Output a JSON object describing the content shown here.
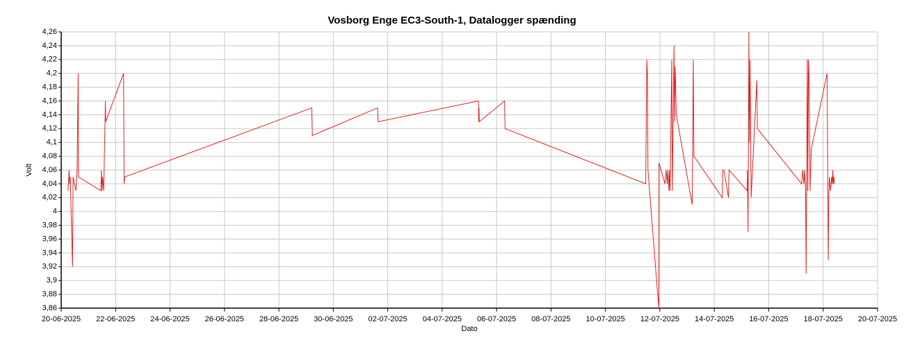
{
  "chart_data": {
    "type": "line",
    "title": "Vosborg Enge EC3-South-1, Datalogger spænding",
    "x_label": "Dato",
    "y_label": "Volt",
    "color": "#e02020",
    "grid": true,
    "x": [
      "2025-06-20T06:00",
      "2025-06-20T07:00",
      "2025-06-20T07:30",
      "2025-06-20T08:00",
      "2025-06-20T10:00",
      "2025-06-20T10:30",
      "2025-06-20T13:00",
      "2025-06-20T14:00",
      "2025-06-20T15:00",
      "2025-06-20T15:15",
      "2025-06-21T11:00",
      "2025-06-21T11:30",
      "2025-06-21T12:00",
      "2025-06-21T12:30",
      "2025-06-21T13:30",
      "2025-06-21T15:00",
      "2025-06-21T15:15",
      "2025-06-22T07:00",
      "2025-06-22T07:30",
      "2025-06-22T08:00",
      "2025-06-29T05:00",
      "2025-06-29T05:30",
      "2025-07-01T15:00",
      "2025-07-01T15:30",
      "2025-07-05T08:00",
      "2025-07-05T08:15",
      "2025-07-05T08:30",
      "2025-07-05T08:45",
      "2025-07-06T07:00",
      "2025-07-06T07:30",
      "2025-07-11T11:30",
      "2025-07-11T12:30",
      "2025-07-11T13:00",
      "2025-07-11T13:30",
      "2025-07-11T23:00",
      "2025-07-11T23:15",
      "2025-07-12T04:30",
      "2025-07-12T05:30",
      "2025-07-12T06:30",
      "2025-07-12T07:00",
      "2025-07-12T08:00",
      "2025-07-12T08:30",
      "2025-07-12T09:00",
      "2025-07-12T10:30",
      "2025-07-12T11:00",
      "2025-07-12T12:30",
      "2025-07-12T13:00",
      "2025-07-12T13:30",
      "2025-07-12T14:30",
      "2025-07-13T04:30",
      "2025-07-13T05:30",
      "2025-07-13T06:00",
      "2025-07-14T07:00",
      "2025-07-14T07:30",
      "2025-07-14T08:30",
      "2025-07-14T12:30",
      "2025-07-14T13:00",
      "2025-07-15T05:00",
      "2025-07-15T05:15",
      "2025-07-15T05:30",
      "2025-07-15T05:45",
      "2025-07-15T06:30",
      "2025-07-15T07:00",
      "2025-07-15T07:30",
      "2025-07-15T08:30",
      "2025-07-15T13:30",
      "2025-07-15T14:00",
      "2025-07-17T05:00",
      "2025-07-17T06:00",
      "2025-07-17T07:00",
      "2025-07-17T07:45",
      "2025-07-17T08:30",
      "2025-07-17T09:00",
      "2025-07-17T09:30",
      "2025-07-17T10:00",
      "2025-07-17T10:30",
      "2025-07-17T11:00",
      "2025-07-17T11:30",
      "2025-07-17T12:00",
      "2025-07-17T12:30",
      "2025-07-17T13:30",
      "2025-07-18T03:30",
      "2025-07-18T04:30",
      "2025-07-18T05:00",
      "2025-07-18T05:30",
      "2025-07-18T06:30",
      "2025-07-18T07:30",
      "2025-07-18T08:00",
      "2025-07-18T08:30",
      "2025-07-18T09:00",
      "2025-07-18T09:30",
      "2025-07-18T10:00"
    ],
    "values": [
      4.03,
      4.06,
      4.04,
      4.05,
      3.92,
      4.05,
      4.03,
      4.06,
      4.2,
      4.05,
      4.03,
      4.06,
      4.03,
      4.05,
      4.03,
      4.16,
      4.13,
      4.2,
      4.04,
      4.05,
      4.15,
      4.11,
      4.15,
      4.13,
      4.16,
      4.13,
      4.15,
      4.13,
      4.16,
      4.12,
      4.04,
      4.22,
      4.2,
      4.06,
      3.86,
      4.07,
      4.04,
      4.06,
      4.04,
      4.06,
      4.03,
      4.06,
      4.03,
      4.22,
      4.03,
      4.24,
      4.13,
      4.21,
      4.14,
      4.01,
      4.22,
      4.08,
      4.02,
      4.06,
      4.06,
      4.02,
      4.06,
      4.03,
      4.06,
      4.01,
      3.97,
      4.26,
      4.1,
      4.22,
      4.02,
      4.19,
      4.12,
      4.04,
      4.06,
      4.04,
      4.06,
      4.03,
      3.91,
      4.05,
      4.22,
      4.03,
      4.22,
      4.2,
      4.12,
      4.03,
      4.09,
      4.2,
      3.93,
      4.02,
      4.05,
      4.03,
      4.05,
      4.04,
      4.06,
      4.04,
      4.05,
      4.04
    ],
    "xlim": [
      "2025-06-20T00:00",
      "2025-07-20T00:00"
    ],
    "xticks": [
      {
        "value": "2025-06-20T00:00",
        "label": "20-06-2025"
      },
      {
        "value": "2025-06-22T00:00",
        "label": "22-06-2025"
      },
      {
        "value": "2025-06-24T00:00",
        "label": "24-06-2025"
      },
      {
        "value": "2025-06-26T00:00",
        "label": "26-06-2025"
      },
      {
        "value": "2025-06-28T00:00",
        "label": "28-06-2025"
      },
      {
        "value": "2025-06-30T00:00",
        "label": "30-06-2025"
      },
      {
        "value": "2025-07-02T00:00",
        "label": "02-07-2025"
      },
      {
        "value": "2025-07-04T00:00",
        "label": "04-07-2025"
      },
      {
        "value": "2025-07-06T00:00",
        "label": "06-07-2025"
      },
      {
        "value": "2025-07-08T00:00",
        "label": "08-07-2025"
      },
      {
        "value": "2025-07-10T00:00",
        "label": "10-07-2025"
      },
      {
        "value": "2025-07-12T00:00",
        "label": "12-07-2025"
      },
      {
        "value": "2025-07-14T00:00",
        "label": "14-07-2025"
      },
      {
        "value": "2025-07-16T00:00",
        "label": "16-07-2025"
      },
      {
        "value": "2025-07-18T00:00",
        "label": "18-07-2025"
      },
      {
        "value": "2025-07-20T00:00",
        "label": "20-07-2025"
      }
    ],
    "ylim": [
      3.86,
      4.26
    ],
    "yticks": [
      {
        "value": 4.26,
        "label": "4,26"
      },
      {
        "value": 4.24,
        "label": "4,24"
      },
      {
        "value": 4.22,
        "label": "4,22"
      },
      {
        "value": 4.2,
        "label": "4,2"
      },
      {
        "value": 4.18,
        "label": "4,18"
      },
      {
        "value": 4.16,
        "label": "4,16"
      },
      {
        "value": 4.14,
        "label": "4,14"
      },
      {
        "value": 4.12,
        "label": "4,12"
      },
      {
        "value": 4.1,
        "label": "4,1"
      },
      {
        "value": 4.08,
        "label": "4,08"
      },
      {
        "value": 4.06,
        "label": "4,06"
      },
      {
        "value": 4.04,
        "label": "4,04"
      },
      {
        "value": 4.02,
        "label": "4,02"
      },
      4,
      {
        "value": 3.98,
        "label": "3,98"
      },
      {
        "value": 3.96,
        "label": "3,96"
      },
      {
        "value": 3.94,
        "label": "3,94"
      },
      {
        "value": 3.92,
        "label": "3,92"
      },
      {
        "value": 3.9,
        "label": "3,9"
      },
      {
        "value": 3.88,
        "label": "3,88"
      },
      {
        "value": 3.86,
        "label": "3,86"
      }
    ]
  }
}
